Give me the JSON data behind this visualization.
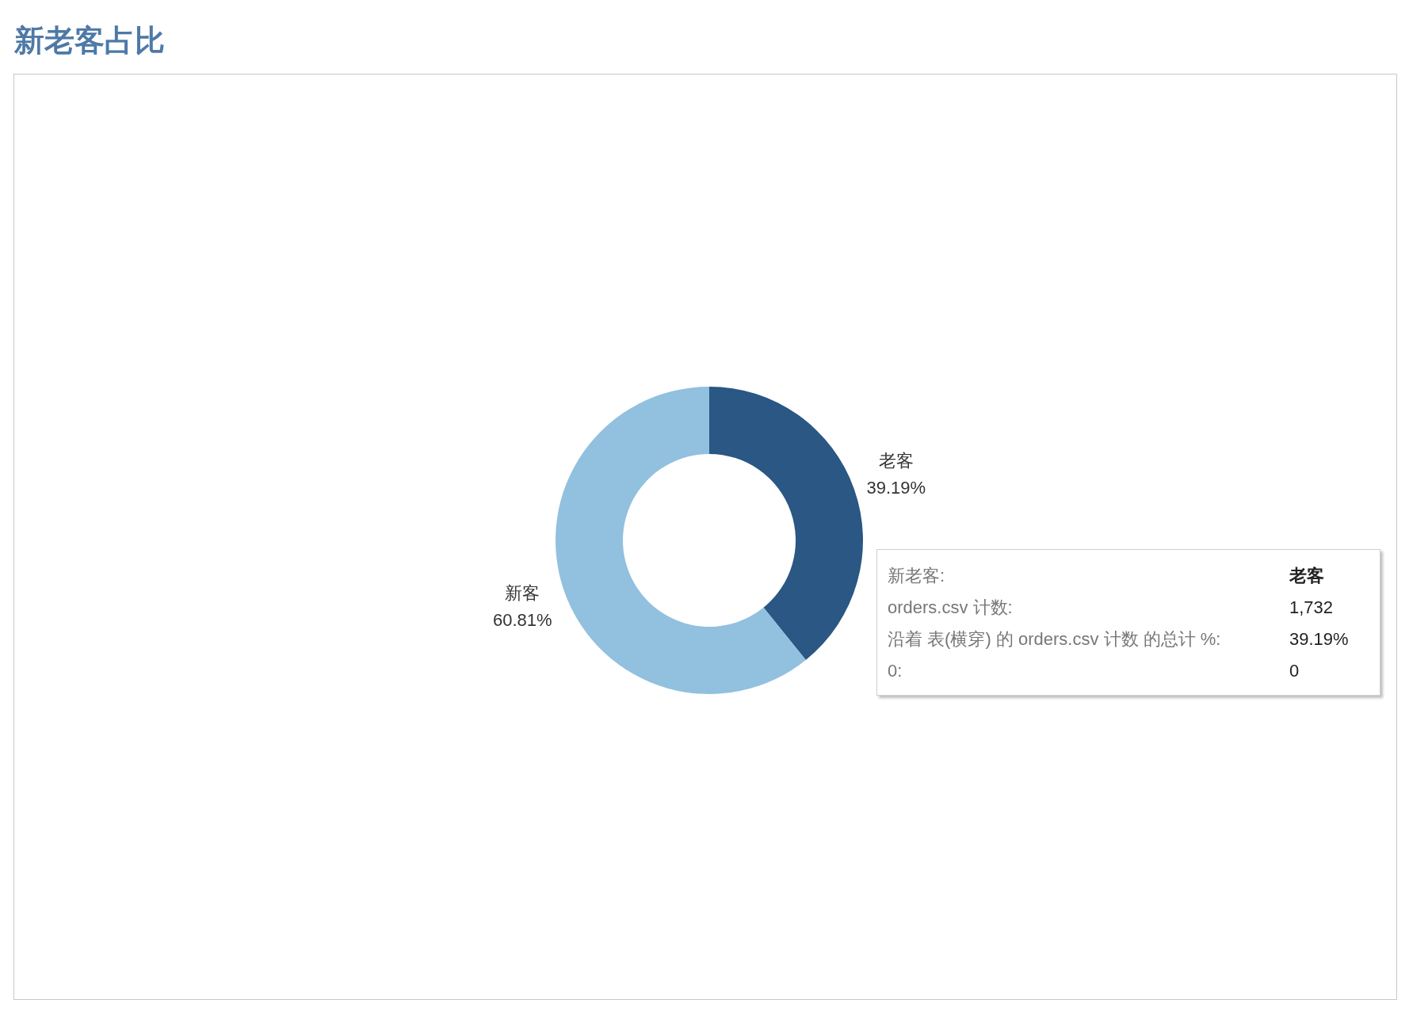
{
  "chart_data": {
    "type": "donut",
    "title": "新老客占比",
    "categories": [
      "老客",
      "新客"
    ],
    "values": [
      39.19,
      60.81
    ],
    "colors": [
      "#2a5783",
      "#92c0df"
    ],
    "value_labels": [
      "39.19%",
      "60.81%"
    ],
    "annotations": [
      "新老客:",
      "老客",
      "orders.csv 计数:",
      "1,732",
      "沿着 表(横穿) 的 orders.csv 计数 的总计 %:",
      "39.19%",
      "0:",
      "0"
    ]
  }
}
